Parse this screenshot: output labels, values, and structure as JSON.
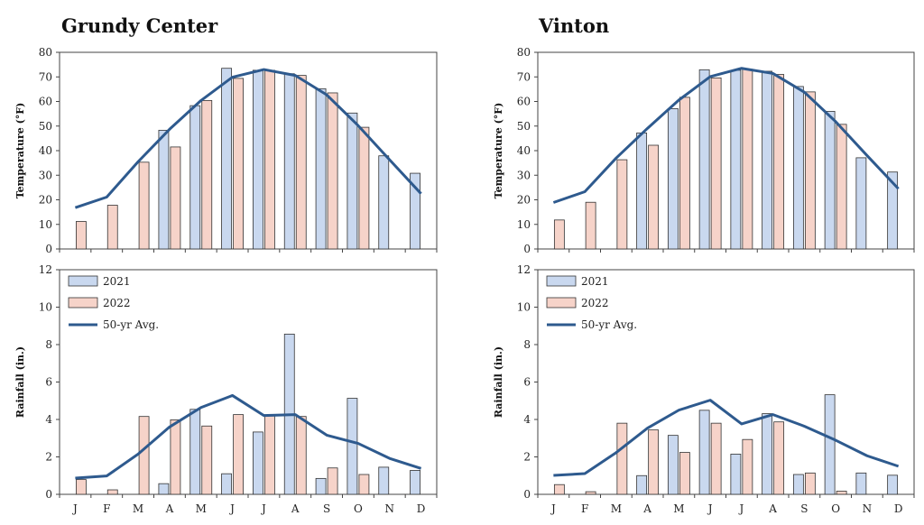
{
  "page": {
    "left_title": "Grundy Center",
    "right_title": "Vinton"
  },
  "colors": {
    "bar_2021": "#c9d8ef",
    "bar_2022": "#f6d3c9",
    "line_avg": "#2e5a8e",
    "bar_stroke": "#333333"
  },
  "chart_data": [
    {
      "type": "bar",
      "panel": "Grundy Center temperature",
      "title": "Grundy Center",
      "categories": [
        "J",
        "F",
        "M",
        "A",
        "M",
        "J",
        "J",
        "A",
        "S",
        "O",
        "N",
        "D"
      ],
      "ylabel": "Temperature (°F)",
      "ylim": [
        0,
        80
      ],
      "yticks": [
        0,
        10,
        20,
        30,
        40,
        50,
        60,
        70,
        80
      ],
      "series": [
        {
          "name": "2021",
          "kind": "bar",
          "values": [
            null,
            null,
            null,
            48.3,
            58.3,
            73.5,
            72.7,
            71.3,
            65.2,
            55.3,
            37.9,
            30.8
          ]
        },
        {
          "name": "2022",
          "kind": "bar",
          "values": [
            11.2,
            17.8,
            35.3,
            41.5,
            60.4,
            69.4,
            72.7,
            70.6,
            63.5,
            49.5,
            null,
            null
          ]
        },
        {
          "name": "50-yr Avg.",
          "kind": "line",
          "values": [
            16.8,
            21.1,
            35.5,
            48.7,
            60.4,
            69.9,
            73.0,
            70.6,
            62.7,
            50.2,
            36.3,
            22.5
          ]
        }
      ],
      "legend": false
    },
    {
      "type": "bar",
      "panel": "Grundy Center rainfall",
      "categories": [
        "J",
        "F",
        "M",
        "A",
        "M",
        "J",
        "J",
        "A",
        "S",
        "O",
        "N",
        "D"
      ],
      "ylabel": "Rainfall (in.)",
      "ylim": [
        0,
        12
      ],
      "yticks": [
        0,
        2,
        4,
        6,
        8,
        10,
        12
      ],
      "series": [
        {
          "name": "2021",
          "kind": "bar",
          "values": [
            null,
            null,
            null,
            0.57,
            4.54,
            1.1,
            3.33,
            8.56,
            0.85,
            5.13,
            1.45,
            1.28
          ]
        },
        {
          "name": "2022",
          "kind": "bar",
          "values": [
            0.79,
            0.24,
            4.16,
            3.98,
            3.65,
            4.26,
            4.19,
            4.16,
            1.41,
            1.06,
            null,
            null
          ]
        },
        {
          "name": "50-yr Avg.",
          "kind": "line",
          "values": [
            0.87,
            0.98,
            2.15,
            3.6,
            4.64,
            5.28,
            4.21,
            4.26,
            3.16,
            2.72,
            1.92,
            1.38
          ]
        }
      ],
      "legend": true,
      "legend_position": "top-left"
    },
    {
      "type": "bar",
      "panel": "Vinton temperature",
      "title": "Vinton",
      "categories": [
        "J",
        "F",
        "M",
        "A",
        "M",
        "J",
        "J",
        "A",
        "S",
        "O",
        "N",
        "D"
      ],
      "ylabel": "Temperature (°F)",
      "ylim": [
        0,
        80
      ],
      "yticks": [
        0,
        10,
        20,
        30,
        40,
        50,
        60,
        70,
        80
      ],
      "series": [
        {
          "name": "2021",
          "kind": "bar",
          "values": [
            null,
            null,
            null,
            47.2,
            57.1,
            72.9,
            72.7,
            72.3,
            66.1,
            56.0,
            37.1,
            31.3
          ]
        },
        {
          "name": "2022",
          "kind": "bar",
          "values": [
            11.8,
            19.0,
            36.3,
            42.2,
            61.7,
            69.6,
            73.1,
            71.0,
            63.9,
            50.7,
            null,
            null
          ]
        },
        {
          "name": "50-yr Avg.",
          "kind": "line",
          "values": [
            18.9,
            23.3,
            37.0,
            49.1,
            60.6,
            70.1,
            73.5,
            71.4,
            63.8,
            51.8,
            38.0,
            24.5
          ]
        }
      ],
      "legend": false
    },
    {
      "type": "bar",
      "panel": "Vinton rainfall",
      "categories": [
        "J",
        "F",
        "M",
        "A",
        "M",
        "J",
        "J",
        "A",
        "S",
        "O",
        "N",
        "D"
      ],
      "ylabel": "Rainfall (in.)",
      "ylim": [
        0,
        12
      ],
      "yticks": [
        0,
        2,
        4,
        6,
        8,
        10,
        12
      ],
      "series": [
        {
          "name": "2021",
          "kind": "bar",
          "values": [
            null,
            null,
            null,
            1.0,
            3.15,
            4.49,
            2.15,
            4.31,
            1.06,
            5.32,
            1.14,
            1.02
          ]
        },
        {
          "name": "2022",
          "kind": "bar",
          "values": [
            0.52,
            0.14,
            3.8,
            3.44,
            2.24,
            3.8,
            2.93,
            3.87,
            1.14,
            0.17,
            null,
            null
          ]
        },
        {
          "name": "50-yr Avg.",
          "kind": "line",
          "values": [
            1.01,
            1.11,
            2.23,
            3.54,
            4.5,
            5.03,
            3.76,
            4.26,
            3.64,
            2.89,
            2.06,
            1.5
          ]
        }
      ],
      "legend": true,
      "legend_position": "top-left"
    }
  ]
}
